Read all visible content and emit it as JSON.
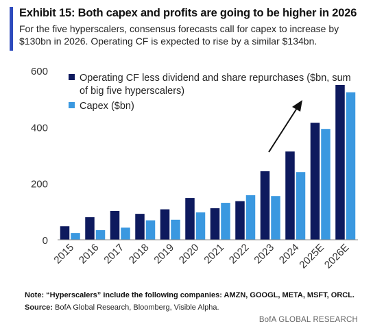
{
  "header": {
    "title": "Exhibit 15: Both capex and profits are going to be higher in 2026",
    "subtitle": "For the five hyperscalers, consensus forecasts call for capex to increase by $130bn in 2026. Operating CF is expected to rise by a similar $134bn."
  },
  "footer": {
    "note": "Note: “Hyperscalers” include the following companies: AMZN, GOOGL, META, MSFT, ORCL.",
    "source_label": "Source:",
    "source_text": "BofA Global Research, Bloomberg, Visible Alpha.",
    "brand": "BofA GLOBAL RESEARCH"
  },
  "colors": {
    "accent": "#2e4bbd",
    "operating_cf": "#0e1a5e",
    "capex": "#3a98e0"
  },
  "chart_data": {
    "type": "bar",
    "categories": [
      "2015",
      "2016",
      "2017",
      "2018",
      "2019",
      "2020",
      "2021",
      "2022",
      "2023",
      "2024",
      "2025E",
      "2026E"
    ],
    "series": [
      {
        "name": "Operating CF less dividend and share repurchases ($bn, sum of big five hyperscalers)",
        "color": "#0e1a5e",
        "values": [
          48,
          80,
          102,
          92,
          108,
          148,
          112,
          137,
          243,
          313,
          415,
          549
        ]
      },
      {
        "name": "Capex ($bn)",
        "color": "#3a98e0",
        "values": [
          24,
          34,
          43,
          69,
          71,
          97,
          131,
          158,
          155,
          240,
          393,
          523
        ]
      }
    ],
    "legend": [
      "Operating CF less dividend and share repurchases ($bn, sum",
      "of big five hyperscalers)",
      "Capex ($bn)"
    ],
    "yticks": [
      0,
      200,
      400,
      600
    ],
    "ylim": [
      0,
      600
    ],
    "grid": false,
    "legend_position": "top-left",
    "annotation": "upward arrow"
  }
}
